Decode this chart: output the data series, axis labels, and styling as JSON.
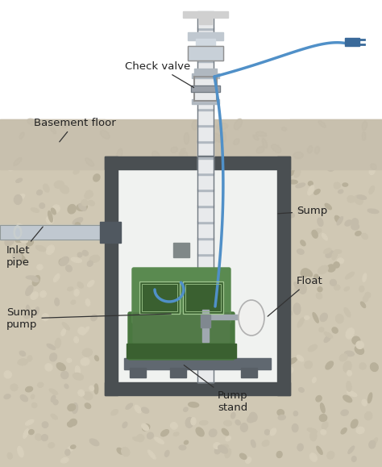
{
  "bg_color": "#ffffff",
  "labels": {
    "check_valve": "Check valve",
    "basement_floor": "Basement floor",
    "inlet_pipe": "Inlet\npipe",
    "sump_pump": "Sump\npump",
    "sump": "Sump",
    "float": "Float",
    "pump_stand": "Pump\nstand"
  },
  "colors": {
    "bg": "#ffffff",
    "gravel": "#d0c8b4",
    "gravel_dark": "#b8b09a",
    "gravel_stone": "#c4bcaa",
    "concrete": "#c8c0ae",
    "sump_wall": "#4a4f52",
    "pipe_white": "#e8eaec",
    "pipe_gray": "#b0b8c0",
    "pipe_outline": "#707880",
    "pump_green": "#4a7840",
    "pump_green_light": "#5a8a50",
    "pump_green_dark": "#3a6030",
    "pump_green_mid": "#527a48",
    "float_white": "#f0f0ee",
    "float_gray": "#b0b0b0",
    "blue_wire": "#5090c8",
    "blue_plug": "#3a6a9a",
    "stand_gray": "#606870",
    "text_color": "#222222",
    "annot_line": "#333333",
    "inlet_gray": "#c0c8d0",
    "connector_dark": "#505860"
  }
}
